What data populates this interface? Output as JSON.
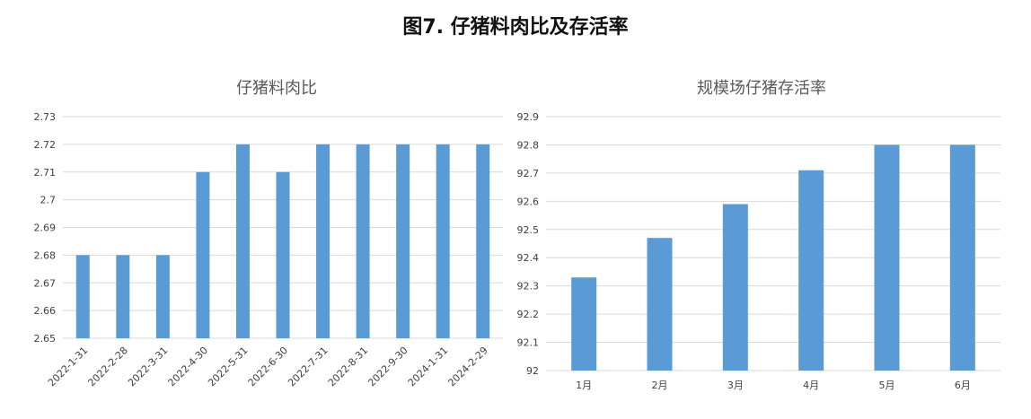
{
  "figure": {
    "title": "图7. 仔猪料肉比及存活率"
  },
  "chart_data": [
    {
      "type": "bar",
      "title": "仔猪料肉比",
      "categories": [
        "2022-1-31",
        "2022-2-28",
        "2022-3-31",
        "2022-4-30",
        "2022-5-31",
        "2022-6-30",
        "2022-7-31",
        "2022-8-31",
        "2022-9-30",
        "2024-1-31",
        "2024-2-29"
      ],
      "values": [
        2.68,
        2.68,
        2.68,
        2.71,
        2.72,
        2.71,
        2.72,
        2.72,
        2.72,
        2.72,
        2.72
      ],
      "ylim": [
        2.65,
        2.73
      ],
      "yticks": [
        "2.65",
        "2.66",
        "2.67",
        "2.68",
        "2.69",
        "2.7",
        "2.71",
        "2.72",
        "2.73"
      ],
      "xlabel": "",
      "ylabel": "",
      "grid": true,
      "color": "#5b9bd5"
    },
    {
      "type": "bar",
      "title": "规模场仔猪存活率",
      "categories": [
        "1月",
        "2月",
        "3月",
        "4月",
        "5月",
        "6月"
      ],
      "values": [
        92.33,
        92.47,
        92.59,
        92.71,
        92.8,
        92.8
      ],
      "ylim": [
        92.0,
        92.9
      ],
      "yticks": [
        "92",
        "92.1",
        "92.2",
        "92.3",
        "92.4",
        "92.5",
        "92.6",
        "92.7",
        "92.8",
        "92.9"
      ],
      "xlabel": "",
      "ylabel": "",
      "grid": true,
      "color": "#5b9bd5"
    }
  ]
}
